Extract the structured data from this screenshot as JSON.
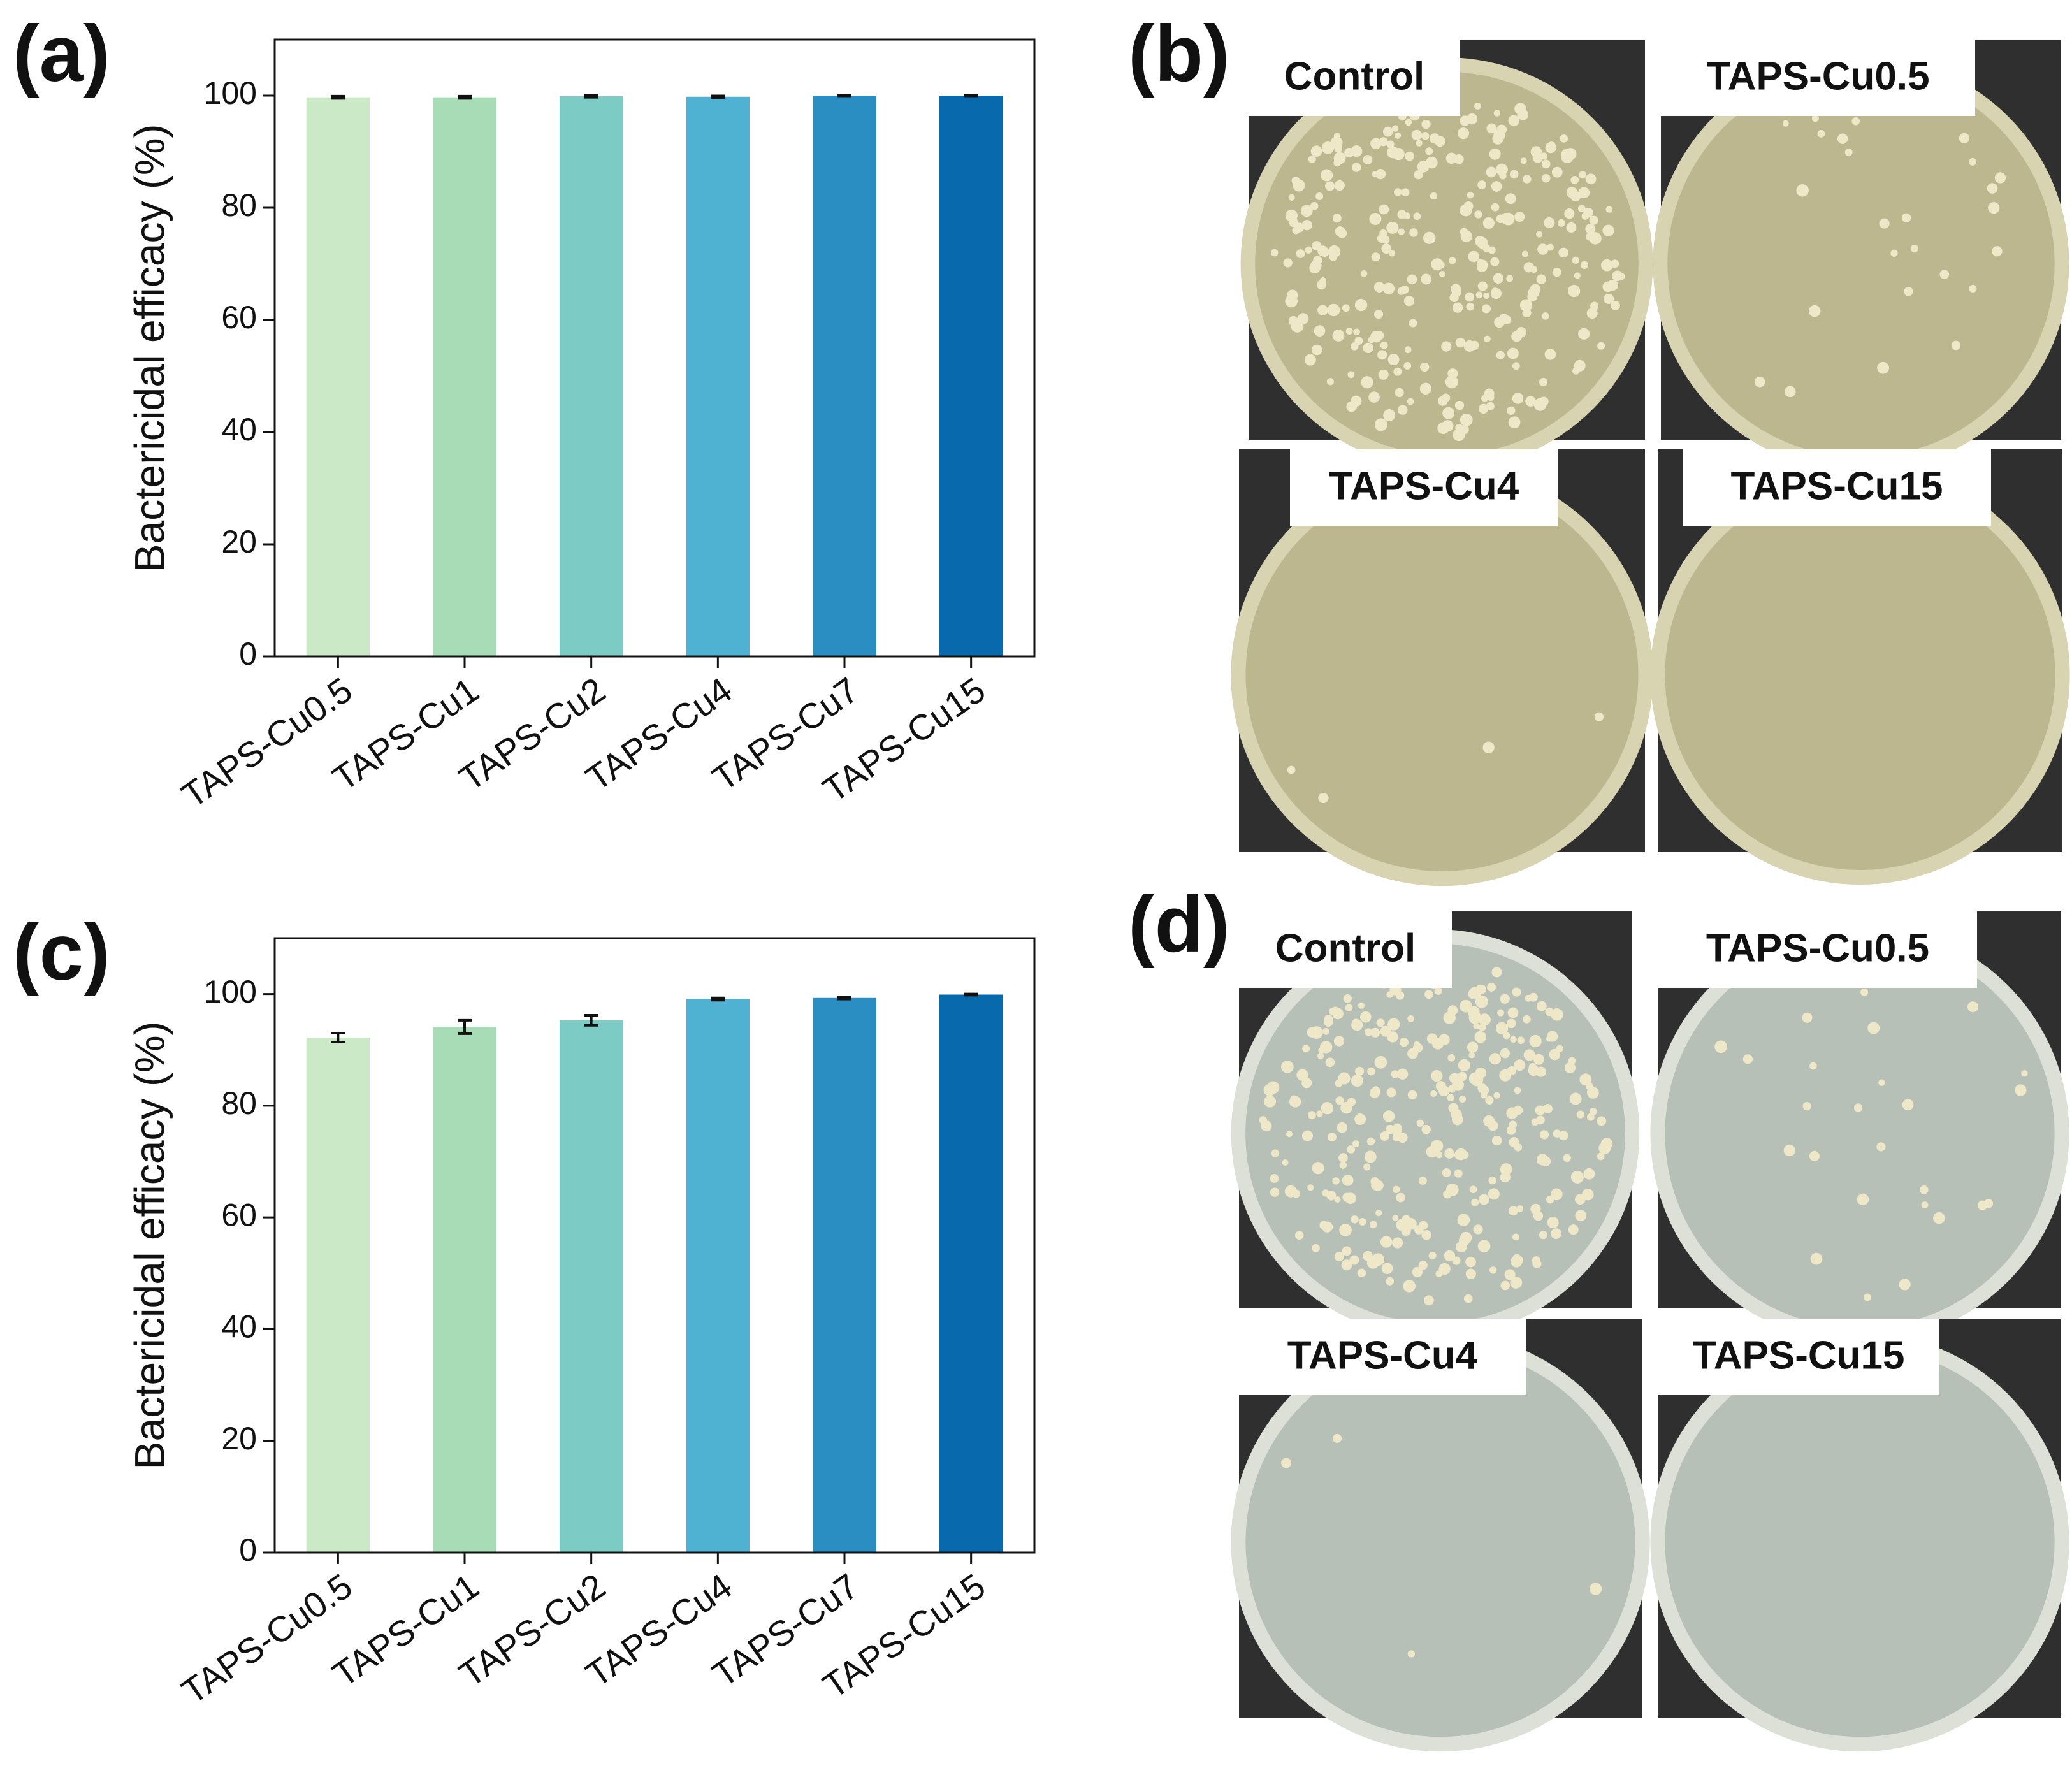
{
  "chart_data": [
    {
      "type": "bar",
      "panel_label": "(a)",
      "y_label": "Bactericidal efficacy (%)",
      "categories": [
        "TAPS-Cu0.5",
        "TAPS-Cu1",
        "TAPS-Cu2",
        "TAPS-Cu4",
        "TAPS-Cu7",
        "TAPS-Cu15"
      ],
      "values": [
        99.7,
        99.7,
        99.9,
        99.8,
        100,
        100
      ],
      "errors": [
        0.2,
        0.2,
        0.2,
        0.15,
        0.05,
        0.05
      ],
      "colors": [
        "#cbe9c6",
        "#a7dcb6",
        "#7ccbc4",
        "#4fb2d3",
        "#2b8ec2",
        "#0869ac"
      ],
      "ylim": [
        0,
        110
      ],
      "yticks": [
        0,
        20,
        40,
        60,
        80,
        100
      ]
    },
    {
      "type": "bar",
      "panel_label": "(c)",
      "y_label": "Bactericidal efficacy (%)",
      "categories": [
        "TAPS-Cu0.5",
        "TAPS-Cu1",
        "TAPS-Cu2",
        "TAPS-Cu4",
        "TAPS-Cu7",
        "TAPS-Cu15"
      ],
      "values": [
        92.2,
        94.1,
        95.3,
        99.1,
        99.3,
        99.9
      ],
      "errors": [
        0.8,
        1.2,
        0.9,
        0.2,
        0.2,
        0.1
      ],
      "colors": [
        "#cbe9c6",
        "#a7dcb6",
        "#7ccbc4",
        "#4fb2d3",
        "#2b8ec2",
        "#0869ac"
      ],
      "ylim": [
        0,
        110
      ],
      "yticks": [
        0,
        20,
        40,
        60,
        80,
        100
      ]
    }
  ],
  "photo_panels": [
    {
      "panel_label": "(b)",
      "tiles": [
        "Control",
        "TAPS-Cu0.5",
        "TAPS-Cu4",
        "TAPS-Cu15"
      ]
    },
    {
      "panel_label": "(d)",
      "tiles": [
        "Control",
        "TAPS-Cu0.5",
        "TAPS-Cu4",
        "TAPS-Cu15"
      ]
    }
  ]
}
